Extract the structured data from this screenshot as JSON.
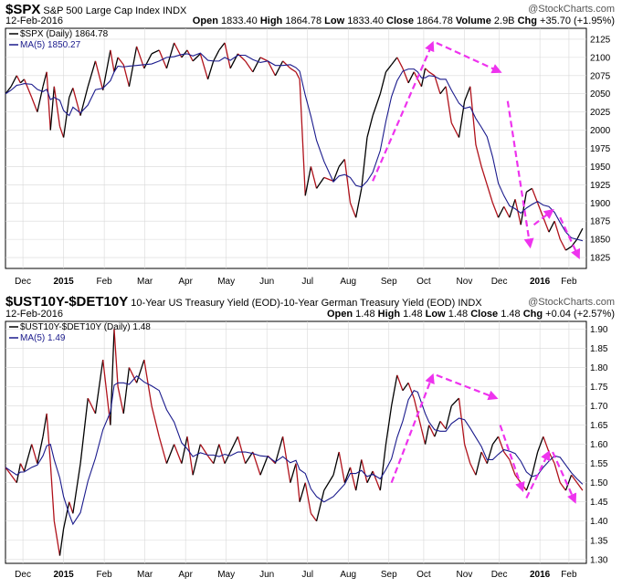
{
  "brand": "@StockCharts.com",
  "colors": {
    "price": "#000000",
    "price_down": "#b0121b",
    "ma": "#1a1a8c",
    "arrow": "#ee33ee",
    "grid": "#d8d8d8",
    "axis": "#000000"
  },
  "panel1": {
    "symbol": "$SPX",
    "name": "S&P 500 Large Cap Index",
    "exchange": "INDX",
    "date": "12-Feb-2016",
    "stats": {
      "open_label": "Open",
      "open": "1833.40",
      "high_label": "High",
      "high": "1864.78",
      "low_label": "Low",
      "low": "1833.40",
      "close_label": "Close",
      "close": "1864.78",
      "volume_label": "Volume",
      "volume": "2.9B",
      "chg_label": "Chg",
      "chg": "+35.70 (+1.95%)"
    },
    "legend": {
      "price": "$SPX (Daily) 1864.78",
      "ma": "MA(5) 1850.27"
    }
  },
  "panel2": {
    "symbol": "$UST10Y-$DET10Y",
    "name": "10-Year US Treasury Yield (EOD)-10-Year German Treasury Yield (EOD)",
    "exchange": "INDX",
    "date": "12-Feb-2016",
    "stats": {
      "open_label": "Open",
      "open": "1.48",
      "high_label": "High",
      "high": "1.48",
      "low_label": "Low",
      "low": "1.48",
      "close_label": "Close",
      "close": "1.48",
      "chg_label": "Chg",
      "chg": "+0.04 (+2.57%)"
    },
    "legend": {
      "price": "$UST10Y-$DET10Y (Daily) 1.48",
      "ma": "MA(5) 1.49"
    }
  },
  "chart_data": [
    {
      "type": "line",
      "title": "$SPX S&P 500 Large Cap Index",
      "x_ticks": [
        "Dec",
        "2015",
        "Feb",
        "Mar",
        "Apr",
        "May",
        "Jun",
        "Jul",
        "Aug",
        "Sep",
        "Oct",
        "Nov",
        "Dec",
        "2016",
        "Feb"
      ],
      "y_ticks": [
        1825,
        1850,
        1875,
        1900,
        1925,
        1950,
        1975,
        2000,
        2025,
        2050,
        2075,
        2100,
        2125
      ],
      "ylim": [
        1810,
        2140
      ],
      "series": [
        {
          "name": "$SPX (Daily)",
          "x": [
            0,
            3,
            6,
            8,
            10,
            14,
            17,
            20,
            22,
            24,
            26,
            29,
            31,
            34,
            36,
            40,
            44,
            48,
            52,
            56,
            58,
            60,
            63,
            66,
            70,
            74,
            78,
            82,
            86,
            90,
            94,
            97,
            100,
            104,
            108,
            111,
            114,
            117,
            120,
            124,
            128,
            132,
            136,
            140,
            144,
            148,
            152,
            155,
            157,
            160,
            163,
            166,
            170,
            175,
            178,
            181,
            184,
            187,
            190,
            193,
            196,
            200,
            203,
            206,
            209,
            212,
            215,
            218,
            220,
            222,
            224,
            226,
            229,
            232,
            235,
            238,
            242,
            245,
            248,
            251,
            254,
            257,
            260,
            263,
            266,
            269,
            272,
            275,
            278,
            281,
            284,
            287,
            290,
            293,
            296,
            299,
            302,
            305,
            308
          ],
          "values": [
            2050,
            2060,
            2075,
            2065,
            2070,
            2045,
            2025,
            2060,
            2080,
            2000,
            2060,
            2005,
            1990,
            2045,
            2058,
            2020,
            2060,
            2095,
            2055,
            2110,
            2080,
            2100,
            2090,
            2060,
            2115,
            2085,
            2105,
            2110,
            2085,
            2120,
            2100,
            2110,
            2095,
            2105,
            2070,
            2095,
            2110,
            2120,
            2085,
            2105,
            2095,
            2080,
            2100,
            2095,
            2075,
            2095,
            2085,
            2080,
            2070,
            1910,
            1950,
            1920,
            1935,
            1930,
            1950,
            1960,
            1900,
            1880,
            1920,
            1990,
            2020,
            2050,
            2080,
            2090,
            2100,
            2085,
            2065,
            2080,
            2070,
            2060,
            2085,
            2080,
            2075,
            2050,
            2060,
            2010,
            1990,
            2040,
            2060,
            1980,
            1950,
            1925,
            1900,
            1880,
            1895,
            1880,
            1905,
            1870,
            1915,
            1920,
            1900,
            1880,
            1860,
            1875,
            1850,
            1835,
            1840,
            1850,
            1865
          ]
        }
      ],
      "ma_label": "MA(5)"
    },
    {
      "type": "line",
      "title": "$UST10Y-$DET10Y 10-Year US Treasury Yield (EOD)-10-Year German Treasury Yield (EOD)",
      "x_ticks": [
        "Dec",
        "2015",
        "Feb",
        "Mar",
        "Apr",
        "May",
        "Jun",
        "Jul",
        "Aug",
        "Sep",
        "Oct",
        "Nov",
        "Dec",
        "2016",
        "Feb"
      ],
      "y_ticks": [
        1.3,
        1.35,
        1.4,
        1.45,
        1.5,
        1.55,
        1.6,
        1.65,
        1.7,
        1.75,
        1.8,
        1.85,
        1.9
      ],
      "ylim": [
        1.29,
        1.92
      ],
      "series": [
        {
          "name": "$UST10Y-$DET10Y (Daily)",
          "x": [
            0,
            3,
            6,
            8,
            10,
            14,
            17,
            20,
            22,
            24,
            26,
            29,
            31,
            34,
            36,
            40,
            44,
            48,
            52,
            56,
            58,
            60,
            63,
            66,
            70,
            74,
            78,
            82,
            86,
            90,
            94,
            97,
            100,
            104,
            108,
            111,
            114,
            117,
            120,
            124,
            128,
            132,
            136,
            140,
            144,
            148,
            152,
            155,
            157,
            160,
            163,
            166,
            170,
            175,
            178,
            181,
            184,
            187,
            190,
            193,
            196,
            200,
            203,
            206,
            209,
            212,
            215,
            218,
            220,
            222,
            224,
            226,
            229,
            232,
            235,
            238,
            242,
            245,
            248,
            251,
            254,
            257,
            260,
            263,
            266,
            269,
            272,
            275,
            278,
            281,
            284,
            287,
            290,
            293,
            296,
            299,
            302,
            305,
            308
          ],
          "values": [
            1.54,
            1.52,
            1.5,
            1.55,
            1.53,
            1.6,
            1.55,
            1.62,
            1.68,
            1.55,
            1.4,
            1.31,
            1.38,
            1.45,
            1.42,
            1.55,
            1.72,
            1.68,
            1.82,
            1.65,
            1.9,
            1.75,
            1.68,
            1.8,
            1.76,
            1.82,
            1.7,
            1.62,
            1.55,
            1.6,
            1.55,
            1.62,
            1.52,
            1.6,
            1.57,
            1.55,
            1.6,
            1.55,
            1.58,
            1.62,
            1.55,
            1.58,
            1.52,
            1.57,
            1.55,
            1.62,
            1.5,
            1.55,
            1.45,
            1.5,
            1.42,
            1.4,
            1.48,
            1.52,
            1.58,
            1.5,
            1.54,
            1.48,
            1.56,
            1.5,
            1.53,
            1.48,
            1.6,
            1.7,
            1.78,
            1.74,
            1.76,
            1.72,
            1.68,
            1.64,
            1.6,
            1.65,
            1.62,
            1.66,
            1.64,
            1.7,
            1.72,
            1.6,
            1.55,
            1.52,
            1.58,
            1.55,
            1.6,
            1.62,
            1.58,
            1.56,
            1.52,
            1.5,
            1.48,
            1.52,
            1.58,
            1.62,
            1.58,
            1.55,
            1.5,
            1.48,
            1.52,
            1.5,
            1.48
          ]
        }
      ],
      "ma_label": "MA(5)"
    }
  ]
}
